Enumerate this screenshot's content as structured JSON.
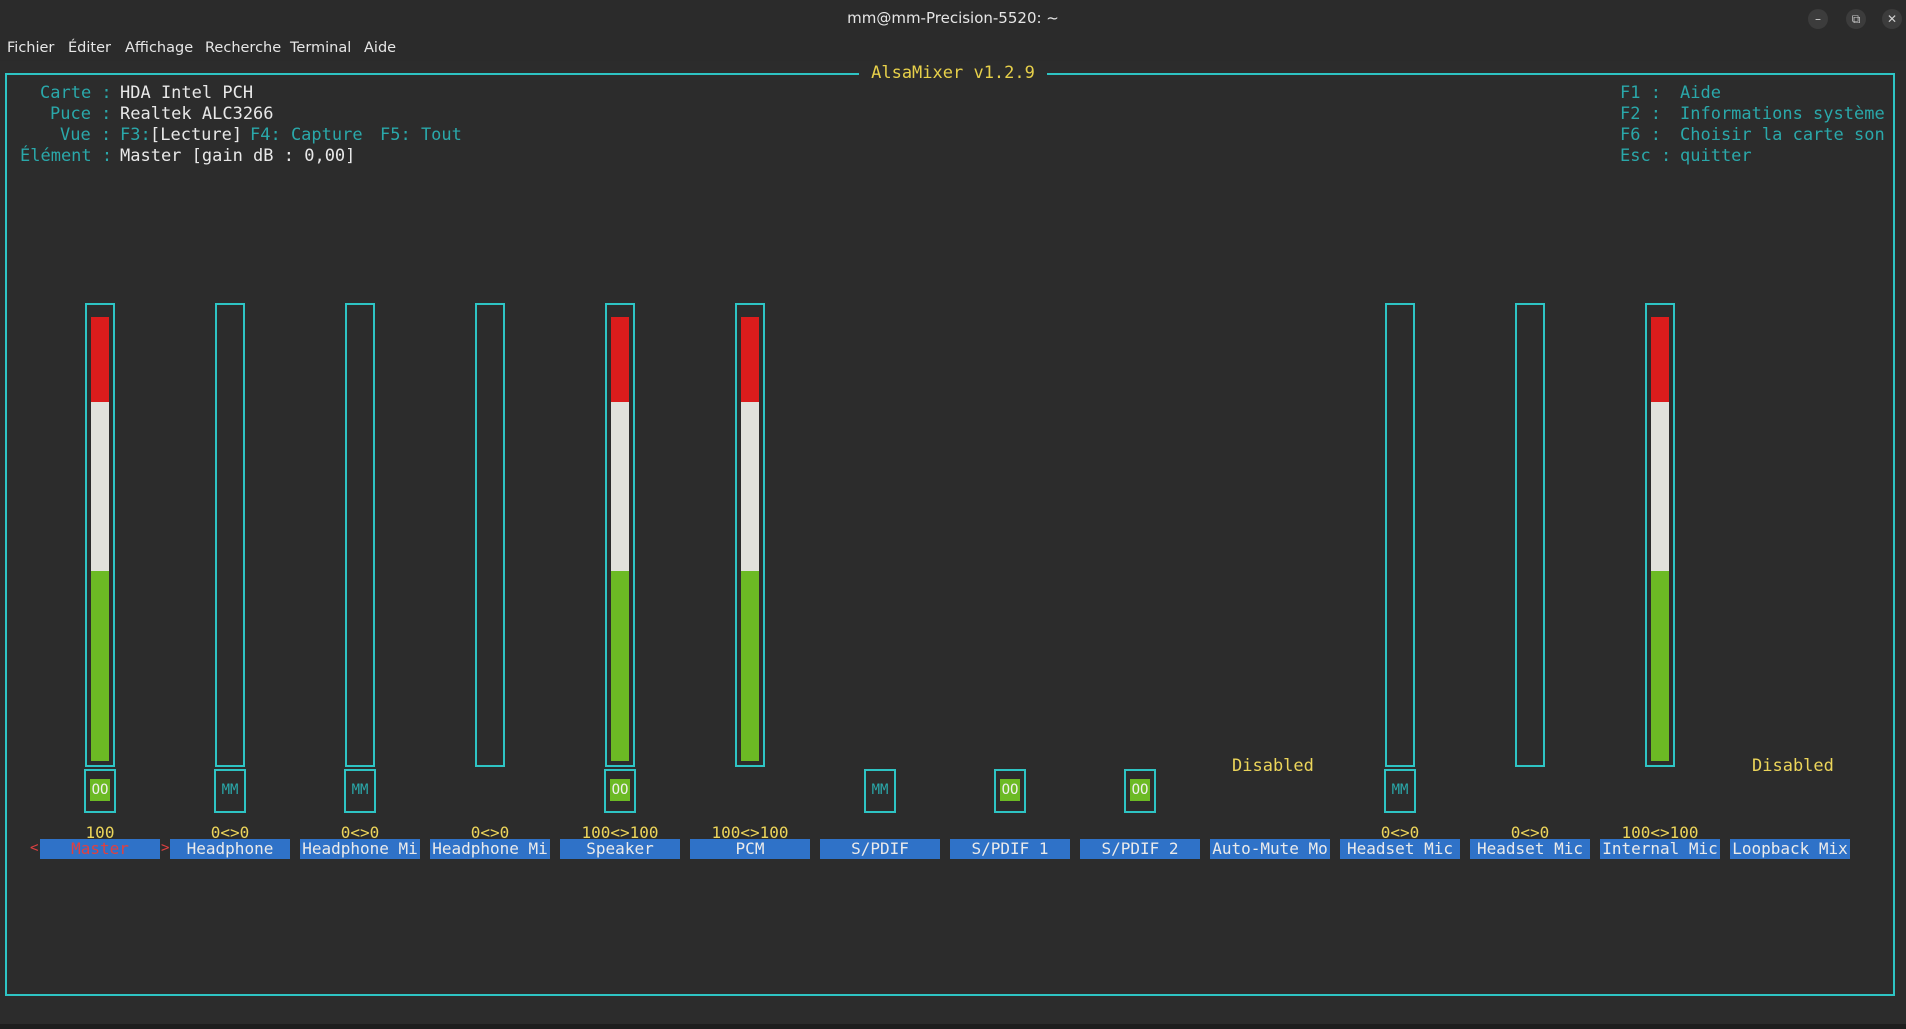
{
  "window": {
    "title": "mm@mm-Precision-5520: ~",
    "minimize": "–",
    "maximize": "⧉",
    "close": "✕"
  },
  "menu": [
    "Fichier",
    "Éditer",
    "Affichage",
    "Recherche",
    "Terminal",
    "Aide"
  ],
  "app_title": "AlsaMixer v1.2.9",
  "info": {
    "card_label": "Carte :",
    "card_value": "HDA Intel PCH",
    "chip_label": "Puce :",
    "chip_value": "Realtek ALC3266",
    "view_label": "Vue :",
    "view_f3": "F3:",
    "view_playback": "[Lecture]",
    "view_f4": "F4: Capture",
    "view_f5": "F5: Tout",
    "element_label": "Élément :",
    "element_value": "Master [gain dB : 0,00]"
  },
  "help": {
    "f1_key": "F1 :",
    "f1_text": "Aide",
    "f2_key": "F2 :",
    "f2_text": "Informations système",
    "f6_key": "F6 :",
    "f6_text": "Choisir la carte son",
    "esc_key": "Esc :",
    "esc_text": "quitter"
  },
  "controls": [
    {
      "label": "Master",
      "value": "100",
      "switch": "OO",
      "level": 1.0,
      "has_bar": true,
      "selected": true
    },
    {
      "label": "Headphone",
      "value": "0<>0",
      "switch": "MM",
      "level": 0,
      "has_bar": true
    },
    {
      "label": "Headphone Mi",
      "value": "0<>0",
      "switch": "MM",
      "level": 0,
      "has_bar": true
    },
    {
      "label": "Headphone Mi",
      "value": "0<>0",
      "switch": "",
      "level": 0,
      "has_bar": true
    },
    {
      "label": "Speaker",
      "value": "100<>100",
      "switch": "OO",
      "level": 1.0,
      "has_bar": true
    },
    {
      "label": "PCM",
      "value": "100<>100",
      "switch": "",
      "level": 1.0,
      "has_bar": true
    },
    {
      "label": "S/PDIF",
      "value": "",
      "switch": "MM",
      "has_bar": false
    },
    {
      "label": "S/PDIF 1",
      "value": "",
      "switch": "OO",
      "has_bar": false
    },
    {
      "label": "S/PDIF 2",
      "value": "",
      "switch": "OO",
      "has_bar": false
    },
    {
      "label": "Auto-Mute Mo",
      "value": "",
      "switch": "",
      "has_bar": false,
      "enum": "Disabled"
    },
    {
      "label": "Headset Mic",
      "value": "0<>0",
      "switch": "MM",
      "level": 0,
      "has_bar": true
    },
    {
      "label": "Headset Mic",
      "value": "0<>0",
      "switch": "",
      "level": 0,
      "has_bar": true
    },
    {
      "label": "Internal Mic",
      "value": "100<>100",
      "switch": "",
      "level": 1.0,
      "has_bar": true
    },
    {
      "label": "Loopback Mix",
      "value": "",
      "switch": "",
      "has_bar": false,
      "enum": "Disabled"
    }
  ],
  "sel_left": "<",
  "sel_right": ">",
  "colors": {
    "border": "#2ec4c4",
    "label_bg": "#2f72c8",
    "red": "#dc1c1c",
    "white": "#e2e2dc",
    "green": "#6cba24",
    "yellow": "#ecd55a"
  }
}
